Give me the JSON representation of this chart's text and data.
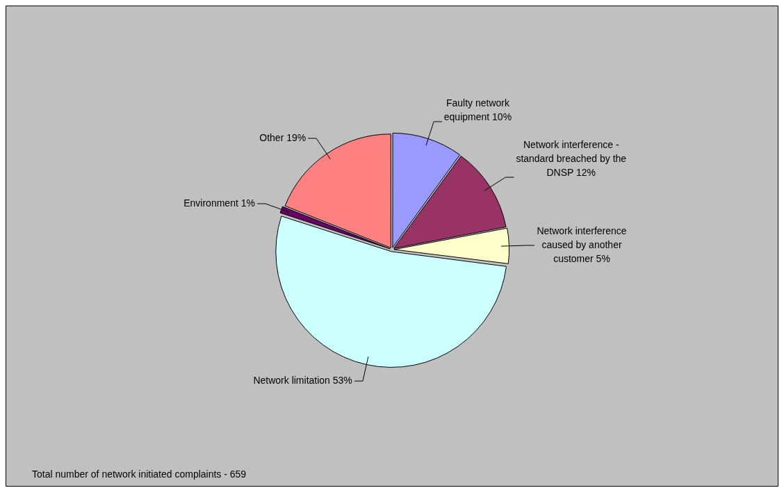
{
  "chart_data": {
    "type": "pie",
    "categories": [
      "Faulty network equipment 10%",
      "Network interference - standard breached by the DNSP 12%",
      "Network interference caused by another customer 5%",
      "Network limitation 53%",
      "Environment 1%",
      "Other 19%"
    ],
    "values": [
      10,
      12,
      5,
      53,
      1,
      19
    ],
    "colors": [
      "#9999ff",
      "#993366",
      "#ffffcc",
      "#ccffff",
      "#660066",
      "#ff8080"
    ],
    "legend": false,
    "annotations": [
      "Total number of network initiated complaints - 659"
    ]
  }
}
